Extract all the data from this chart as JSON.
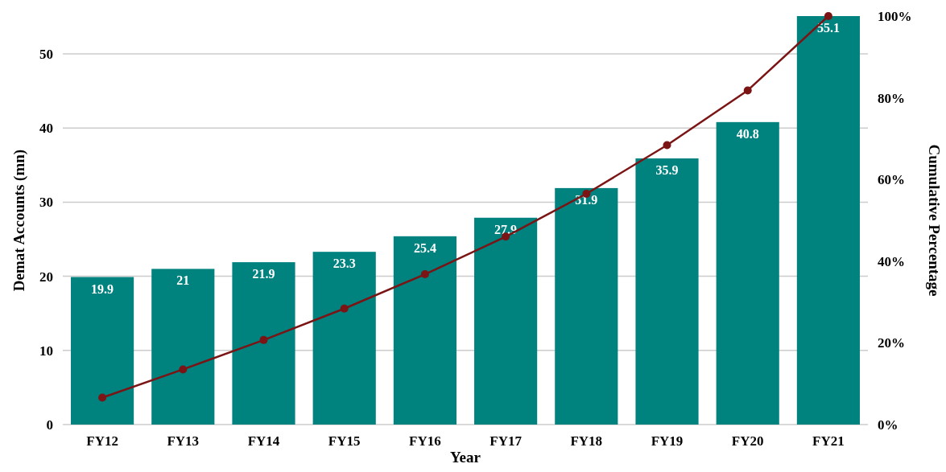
{
  "chart_data": {
    "type": "bar",
    "xlabel": "Year",
    "ylabel": "Demat Accounts (mn)",
    "y2label": "Cumulative Percentage",
    "categories": [
      "FY12",
      "FY13",
      "FY14",
      "FY15",
      "FY16",
      "FY17",
      "FY18",
      "FY19",
      "FY20",
      "FY21"
    ],
    "series": [
      {
        "color": "#00827f",
        "values": [
          19.9,
          21,
          21.9,
          23.3,
          25.4,
          27.9,
          31.9,
          35.9,
          40.8,
          55.1
        ],
        "value_labels": [
          "19.9",
          "21",
          "21.9",
          "23.3",
          "25.4",
          "27.9",
          "31.9",
          "35.9",
          "40.8",
          "55.1"
        ]
      },
      {
        "type": "line",
        "axis": "y2",
        "color": "#7b1414",
        "marker": "circle",
        "values": [
          6.6,
          13.5,
          20.7,
          28.4,
          36.8,
          46.0,
          56.5,
          68.4,
          81.8,
          100
        ]
      }
    ],
    "ylim": [
      0,
      55.1
    ],
    "yticks": [
      0,
      10,
      20,
      30,
      40,
      50
    ],
    "y2lim": [
      0,
      100
    ],
    "y2ticks": [
      {
        "value": 0,
        "label": "0%"
      },
      {
        "value": 20,
        "label": "20%"
      },
      {
        "value": 40,
        "label": "40%"
      },
      {
        "value": 60,
        "label": "60%"
      },
      {
        "value": 80,
        "label": "80%"
      },
      {
        "value": 100,
        "label": "100%"
      }
    ],
    "grid": "y"
  }
}
